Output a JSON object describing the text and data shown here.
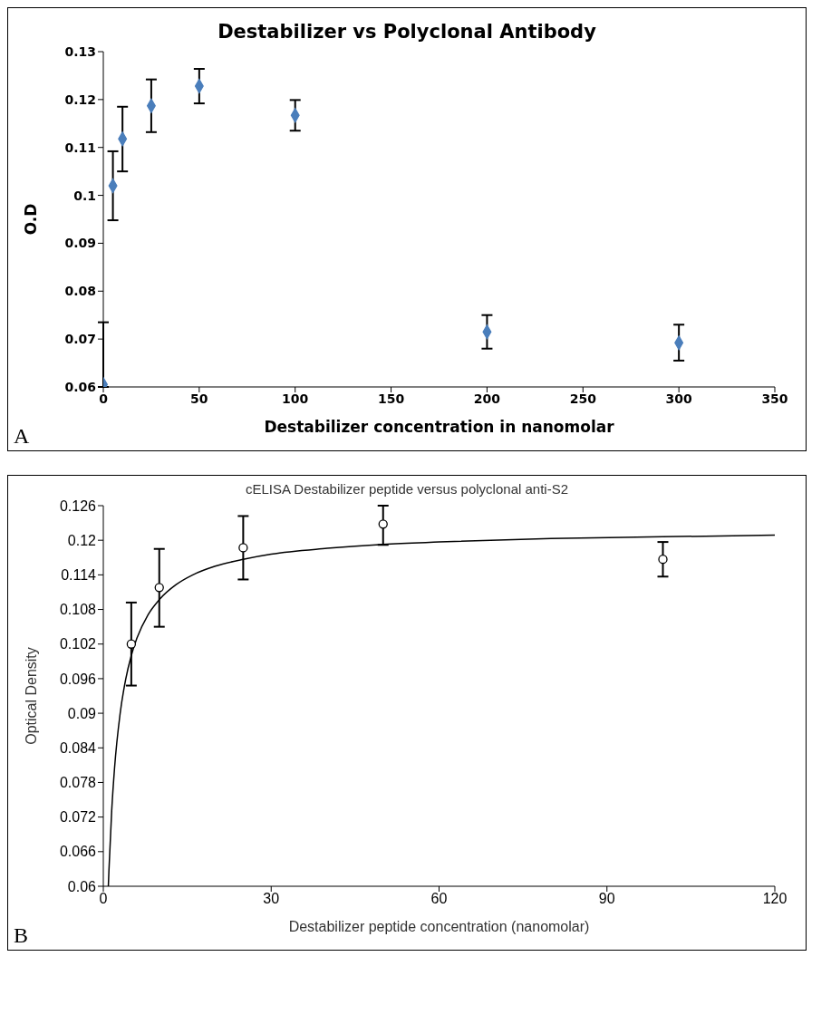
{
  "chart_data": [
    {
      "type": "scatter",
      "title": "Destabilizer vs Polyclonal Antibody",
      "xlabel": "Destabilizer concentration in nanomolar",
      "ylabel": "O.D",
      "x": [
        0,
        5,
        10,
        25,
        50,
        100,
        200,
        300
      ],
      "series": [
        {
          "color": "#4a7ebb",
          "values": [
            0.0605,
            0.102,
            0.1118,
            0.1187,
            0.1228,
            0.1167,
            0.0715,
            0.0692
          ],
          "errors": [
            [
              0.06,
              0.0735
            ],
            [
              0.0948,
              0.1092
            ],
            [
              0.105,
              0.1185
            ],
            [
              0.1132,
              0.1242
            ],
            [
              0.1192,
              0.1264
            ],
            [
              0.1135,
              0.1199
            ],
            [
              0.068,
              0.075
            ],
            [
              0.0655,
              0.073
            ]
          ]
        }
      ],
      "xlim": [
        0,
        350
      ],
      "xticks": [
        0,
        50,
        100,
        150,
        200,
        250,
        300,
        350
      ],
      "ylim": [
        0.06,
        0.13
      ],
      "yticks": [
        0.06,
        0.07,
        0.08,
        0.09,
        0.1,
        0.11,
        0.12,
        0.13
      ],
      "marker": "diamond",
      "annotations": [
        "A"
      ]
    },
    {
      "type": "scatter",
      "title": "cELISA Destabilizer peptide versus polyclonal anti-S2",
      "xlabel": "Destabilizer peptide concentration (nanomolar)",
      "ylabel": "Optical Density",
      "series": [
        {
          "color": "#000000",
          "x": [
            5,
            10,
            25,
            50,
            100
          ],
          "values": [
            0.102,
            0.1118,
            0.1187,
            0.1228,
            0.1167
          ],
          "errors": [
            [
              0.0948,
              0.1092
            ],
            [
              0.105,
              0.1185
            ],
            [
              0.1132,
              0.1242
            ],
            [
              0.1192,
              0.126
            ],
            [
              0.1137,
              0.1197
            ]
          ]
        },
        {
          "type": "line",
          "marker": "none",
          "color": "#000000",
          "x": [
            0.9,
            1,
            1.5,
            2,
            3,
            4,
            5,
            6,
            8,
            10,
            13,
            16,
            20,
            25,
            30,
            40,
            50,
            60,
            80,
            100,
            120
          ],
          "values": [
            0.06,
            0.0626,
            0.0731,
            0.0804,
            0.0899,
            0.0959,
            0.1,
            0.103,
            0.1071,
            0.1097,
            0.1123,
            0.114,
            0.1155,
            0.1167,
            0.1176,
            0.1186,
            0.1193,
            0.1197,
            0.1203,
            0.1206,
            0.1209
          ]
        }
      ],
      "xlim": [
        0,
        120
      ],
      "xticks": [
        0,
        30,
        60,
        90,
        120
      ],
      "ylim": [
        0.06,
        0.126
      ],
      "yticks": [
        0.06,
        0.066,
        0.072,
        0.078,
        0.084,
        0.09,
        0.096,
        0.102,
        0.108,
        0.114,
        0.12,
        0.126
      ],
      "marker": "circle",
      "annotations": [
        "B"
      ]
    }
  ]
}
